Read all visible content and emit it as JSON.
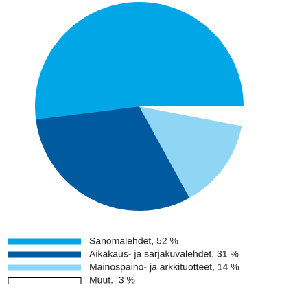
{
  "chart_data": {
    "type": "pie",
    "categories": [
      "Sanomalehdet, 52 %",
      "Aikakaus- ja sarjakuvalehdet, 31 %",
      "Mainospaino- ja arkkituotteet, 14 %",
      "Muut.  3 %"
    ],
    "values": [
      52,
      31,
      14,
      3
    ],
    "colors": [
      "#00a6e6",
      "#005aa0",
      "#8fd6f5",
      "#ffffff"
    ]
  }
}
